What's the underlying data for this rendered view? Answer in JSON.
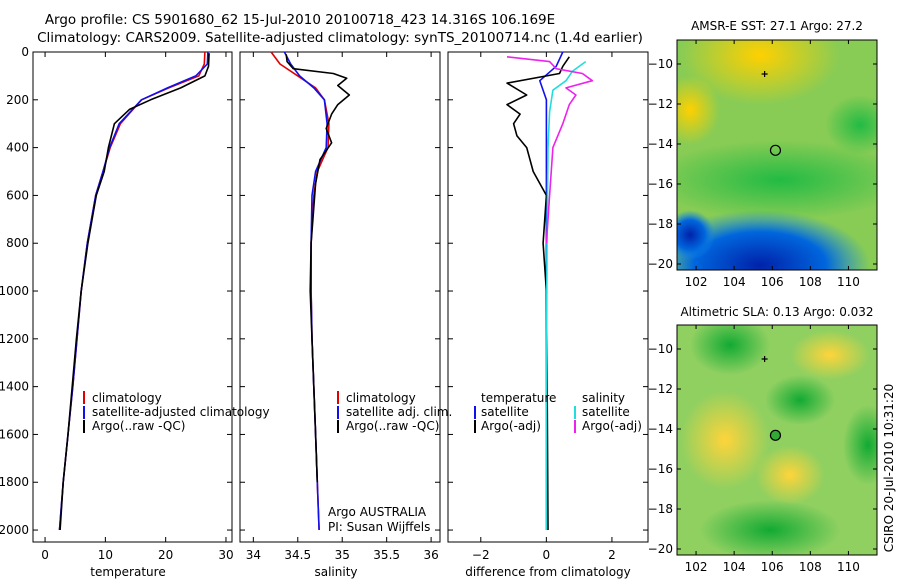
{
  "header": {
    "line1": "Argo profile: CS 5901680_62 15-Jul-2010 20100718_423 14.316S 106.169E",
    "line2": "Climatology: CARS2009. Satellite-adjusted climatology: synTS_20100714.nc (1.4d earlier)"
  },
  "side_label": "CSIRO 20-Jul-2010 10:31:20",
  "colors": {
    "climatology": "#e00000",
    "satellite": "#1010ee",
    "argo": "#000000",
    "sat_sal": "#22dddd",
    "argo_sal": "#ee22ee"
  },
  "chart_data": [
    {
      "id": "temperature",
      "type": "line",
      "xlabel": "temperature",
      "xlim": [
        -2,
        31
      ],
      "ylim": [
        0,
        2050
      ],
      "xticks": [
        0,
        10,
        20,
        30
      ],
      "yticks": [
        0,
        200,
        400,
        600,
        800,
        1000,
        1200,
        1400,
        1600,
        1800,
        2000
      ],
      "legend": [
        "climatology",
        "satellite-adjusted climatology",
        "Argo(..raw -QC)"
      ],
      "series": [
        {
          "name": "climatology",
          "color": "#e00000",
          "x": [
            26.5,
            26.4,
            25.5,
            20.5,
            16,
            12.5,
            10.8,
            9.6,
            8.4,
            7.0,
            6.0,
            5.3,
            4.6,
            3.8,
            3.0,
            2.4
          ],
          "y": [
            0,
            50,
            100,
            150,
            200,
            300,
            400,
            500,
            600,
            800,
            1000,
            1200,
            1400,
            1600,
            1800,
            2000
          ]
        },
        {
          "name": "satellite-adjusted climatology",
          "color": "#1010ee",
          "x": [
            27.0,
            26.9,
            25.0,
            20.3,
            16,
            12.3,
            10.7,
            9.6,
            8.4,
            7.0,
            6.0,
            5.3,
            4.6,
            3.8,
            3.0,
            2.4
          ],
          "y": [
            0,
            50,
            100,
            150,
            200,
            300,
            400,
            500,
            600,
            800,
            1000,
            1200,
            1400,
            1600,
            1800,
            2000
          ]
        },
        {
          "name": "Argo(..raw -QC)",
          "color": "#000000",
          "x": [
            27.2,
            27.1,
            26.5,
            22.5,
            17.5,
            14.0,
            11.5,
            10.5,
            9.8,
            8.5,
            7.1,
            6.0,
            5.2,
            4.5,
            3.8,
            3.0,
            2.5
          ],
          "y": [
            5,
            60,
            100,
            150,
            200,
            240,
            300,
            400,
            500,
            600,
            800,
            1000,
            1200,
            1400,
            1600,
            1800,
            2000
          ]
        }
      ]
    },
    {
      "id": "salinity",
      "type": "line",
      "xlabel": "salinity",
      "xlim": [
        33.85,
        36.1
      ],
      "ylim": [
        0,
        2050
      ],
      "xticks": [
        34,
        34.5,
        35,
        35.5,
        36
      ],
      "legend": [
        "climatology",
        "satellite adj. clim.",
        "Argo(..raw -QC)"
      ],
      "note_lines": [
        "Argo AUSTRALIA",
        "PI: Susan Wijffels"
      ],
      "series": [
        {
          "name": "climatology",
          "color": "#e00000",
          "x": [
            34.2,
            34.3,
            34.5,
            34.7,
            34.8,
            34.85,
            34.84,
            34.72,
            34.68,
            34.65,
            34.65,
            34.66,
            34.68,
            34.7,
            34.72,
            34.74
          ],
          "y": [
            0,
            50,
            100,
            150,
            200,
            300,
            400,
            500,
            600,
            800,
            1000,
            1200,
            1400,
            1600,
            1800,
            2000
          ]
        },
        {
          "name": "satellite adj. clim.",
          "color": "#1010ee",
          "x": [
            34.35,
            34.42,
            34.52,
            34.68,
            34.8,
            34.83,
            34.82,
            34.7,
            34.66,
            34.65,
            34.65,
            34.66,
            34.68,
            34.7,
            34.72,
            34.74
          ],
          "y": [
            0,
            50,
            100,
            150,
            200,
            300,
            400,
            500,
            600,
            800,
            1000,
            1200,
            1400,
            1600,
            1800,
            2000
          ]
        },
        {
          "name": "Argo(..raw -QC)",
          "color": "#000000",
          "x": [
            34.37,
            34.38,
            34.45,
            34.9,
            35.05,
            34.95,
            35.08,
            34.95,
            34.88,
            34.82,
            34.88,
            34.75,
            34.7,
            34.68,
            34.65,
            34.64,
            34.66,
            34.68,
            34.7,
            34.72
          ],
          "y": [
            10,
            40,
            70,
            90,
            110,
            140,
            180,
            220,
            260,
            320,
            380,
            450,
            550,
            650,
            800,
            1000,
            1200,
            1400,
            1600,
            1800
          ]
        }
      ]
    },
    {
      "id": "difference",
      "type": "line",
      "xlabel": "difference from climatology",
      "xlim": [
        -3,
        3.1
      ],
      "ylim": [
        0,
        2050
      ],
      "xticks": [
        -2,
        0,
        2
      ],
      "legend_headers": [
        "temperature",
        "salinity"
      ],
      "legend": [
        "satellite",
        "Argo(-adj)",
        "satellite",
        "Argo(-adj)"
      ],
      "series": [
        {
          "name": "temperature satellite",
          "color": "#1010ee",
          "x": [
            0.5,
            0.3,
            -0.2,
            0,
            0,
            0,
            0,
            0,
            0
          ],
          "y": [
            0,
            60,
            120,
            200,
            400,
            600,
            1000,
            1500,
            2000
          ]
        },
        {
          "name": "temperature Argo(-adj)",
          "color": "#000000",
          "x": [
            0.7,
            0.5,
            0.4,
            -1.2,
            -0.6,
            -1.2,
            -0.8,
            -1.0,
            -0.9,
            -0.6,
            -0.4,
            0,
            -0.1,
            0,
            0.03,
            0.05
          ],
          "y": [
            20,
            60,
            90,
            130,
            180,
            220,
            260,
            300,
            350,
            400,
            500,
            600,
            800,
            1000,
            1500,
            2000
          ]
        },
        {
          "name": "salinity satellite",
          "color": "#22dddd",
          "x": [
            1.2,
            0.8,
            0.6,
            0.2,
            0.1,
            0.05,
            0.02,
            0,
            0
          ],
          "y": [
            40,
            80,
            120,
            160,
            250,
            400,
            800,
            1500,
            2000
          ]
        },
        {
          "name": "salinity Argo(-adj)",
          "color": "#ee22ee",
          "x": [
            -1.2,
            0.1,
            0.3,
            1.1,
            1.4,
            0.6,
            0.9,
            0.7,
            0.5,
            0.2,
            0.1,
            0
          ],
          "y": [
            20,
            40,
            70,
            90,
            120,
            150,
            180,
            220,
            300,
            400,
            600,
            800
          ]
        }
      ]
    },
    {
      "id": "sst-map",
      "type": "heatmap",
      "title": "AMSR-E SST: 27.1 Argo: 27.2",
      "xlim": [
        101,
        111.5
      ],
      "ylim": [
        -20.3,
        -8.8
      ],
      "xticks": [
        102,
        104,
        106,
        108,
        110
      ],
      "yticks": [
        -10,
        -12,
        -14,
        -16,
        -18,
        -20
      ],
      "marker": {
        "lon": 106.169,
        "lat": -14.316,
        "fill": "none"
      },
      "float_mark": {
        "lon": 105.6,
        "lat": -10.5
      }
    },
    {
      "id": "sla-map",
      "type": "heatmap",
      "title": "Altimetric SLA: 0.13 Argo: 0.032",
      "xlim": [
        101,
        111.5
      ],
      "ylim": [
        -20.3,
        -8.8
      ],
      "xticks": [
        102,
        104,
        106,
        108,
        110
      ],
      "yticks": [
        -10,
        -12,
        -14,
        -16,
        -18,
        -20
      ],
      "marker": {
        "lon": 106.169,
        "lat": -14.316,
        "fill": "#33aa33"
      },
      "float_mark": {
        "lon": 105.6,
        "lat": -10.5
      }
    }
  ]
}
